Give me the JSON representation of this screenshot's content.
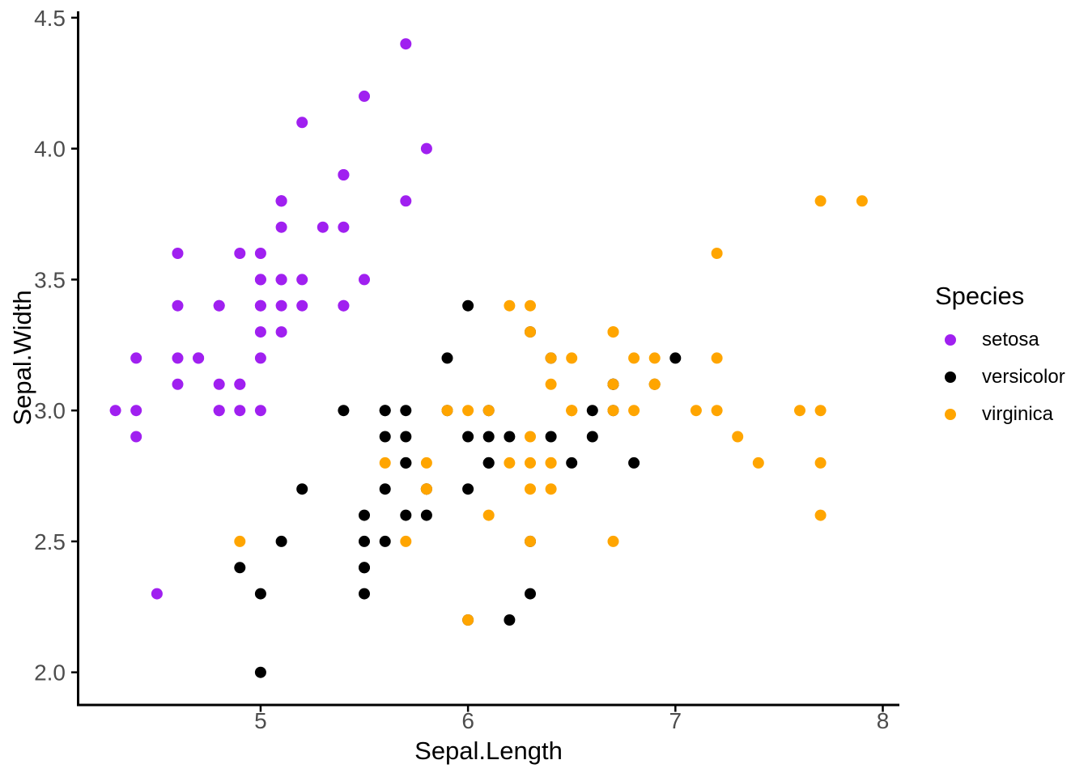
{
  "chart_data": {
    "type": "scatter",
    "title": "",
    "xlabel": "Sepal.Length",
    "ylabel": "Sepal.Width",
    "xlim": [
      4.12,
      8.08
    ],
    "ylim": [
      1.88,
      4.52
    ],
    "grid": "off",
    "background_color": "#FFFFFF",
    "axis_color": "#000000",
    "tick_label_color": "#4D4D4D",
    "x_ticks": [
      {
        "value": 5,
        "label": "5"
      },
      {
        "value": 6,
        "label": "6"
      },
      {
        "value": 7,
        "label": "7"
      },
      {
        "value": 8,
        "label": "8"
      }
    ],
    "y_ticks": [
      {
        "value": 2.0,
        "label": "2.0"
      },
      {
        "value": 2.5,
        "label": "2.5"
      },
      {
        "value": 3.0,
        "label": "3.0"
      },
      {
        "value": 3.5,
        "label": "3.5"
      },
      {
        "value": 4.0,
        "label": "4.0"
      },
      {
        "value": 4.5,
        "label": "4.5"
      }
    ],
    "legend": {
      "title": "Species",
      "position": "right"
    },
    "point_radius_px": 7,
    "series": [
      {
        "name": "setosa",
        "color": "#A020F0",
        "points": [
          [
            5.1,
            3.5
          ],
          [
            4.9,
            3.0
          ],
          [
            4.7,
            3.2
          ],
          [
            4.6,
            3.1
          ],
          [
            5.0,
            3.6
          ],
          [
            5.4,
            3.9
          ],
          [
            4.6,
            3.4
          ],
          [
            5.0,
            3.4
          ],
          [
            4.4,
            2.9
          ],
          [
            4.9,
            3.1
          ],
          [
            5.4,
            3.7
          ],
          [
            4.8,
            3.4
          ],
          [
            4.8,
            3.0
          ],
          [
            4.3,
            3.0
          ],
          [
            5.8,
            4.0
          ],
          [
            5.7,
            4.4
          ],
          [
            5.4,
            3.9
          ],
          [
            5.1,
            3.5
          ],
          [
            5.7,
            3.8
          ],
          [
            5.1,
            3.8
          ],
          [
            5.4,
            3.4
          ],
          [
            5.1,
            3.7
          ],
          [
            4.6,
            3.6
          ],
          [
            5.1,
            3.3
          ],
          [
            4.8,
            3.4
          ],
          [
            5.0,
            3.0
          ],
          [
            5.0,
            3.4
          ],
          [
            5.2,
            3.5
          ],
          [
            5.2,
            3.4
          ],
          [
            4.7,
            3.2
          ],
          [
            4.8,
            3.1
          ],
          [
            5.4,
            3.4
          ],
          [
            5.2,
            4.1
          ],
          [
            5.5,
            4.2
          ],
          [
            4.9,
            3.1
          ],
          [
            5.0,
            3.2
          ],
          [
            5.5,
            3.5
          ],
          [
            4.9,
            3.6
          ],
          [
            4.4,
            3.0
          ],
          [
            5.1,
            3.4
          ],
          [
            5.0,
            3.5
          ],
          [
            4.5,
            2.3
          ],
          [
            4.4,
            3.2
          ],
          [
            5.0,
            3.5
          ],
          [
            5.1,
            3.8
          ],
          [
            4.8,
            3.0
          ],
          [
            5.1,
            3.8
          ],
          [
            4.6,
            3.2
          ],
          [
            5.3,
            3.7
          ],
          [
            5.0,
            3.3
          ]
        ]
      },
      {
        "name": "versicolor",
        "color": "#000000",
        "points": [
          [
            7.0,
            3.2
          ],
          [
            6.4,
            3.2
          ],
          [
            6.9,
            3.1
          ],
          [
            5.5,
            2.3
          ],
          [
            6.5,
            2.8
          ],
          [
            5.7,
            2.8
          ],
          [
            6.3,
            3.3
          ],
          [
            4.9,
            2.4
          ],
          [
            6.6,
            2.9
          ],
          [
            5.2,
            2.7
          ],
          [
            5.0,
            2.0
          ],
          [
            5.9,
            3.0
          ],
          [
            6.0,
            2.2
          ],
          [
            6.1,
            2.9
          ],
          [
            5.6,
            2.9
          ],
          [
            6.7,
            3.1
          ],
          [
            5.6,
            3.0
          ],
          [
            5.8,
            2.7
          ],
          [
            6.2,
            2.2
          ],
          [
            5.6,
            2.5
          ],
          [
            5.9,
            3.2
          ],
          [
            6.1,
            2.8
          ],
          [
            6.3,
            2.5
          ],
          [
            6.1,
            2.8
          ],
          [
            6.4,
            2.9
          ],
          [
            6.6,
            3.0
          ],
          [
            6.8,
            2.8
          ],
          [
            6.7,
            3.0
          ],
          [
            6.0,
            2.9
          ],
          [
            5.7,
            2.6
          ],
          [
            5.5,
            2.4
          ],
          [
            5.5,
            2.4
          ],
          [
            5.8,
            2.7
          ],
          [
            6.0,
            2.7
          ],
          [
            5.4,
            3.0
          ],
          [
            6.0,
            3.4
          ],
          [
            6.7,
            3.1
          ],
          [
            6.3,
            2.3
          ],
          [
            5.6,
            3.0
          ],
          [
            5.5,
            2.5
          ],
          [
            5.5,
            2.6
          ],
          [
            6.1,
            3.0
          ],
          [
            5.8,
            2.6
          ],
          [
            5.0,
            2.3
          ],
          [
            5.6,
            2.7
          ],
          [
            5.7,
            3.0
          ],
          [
            5.7,
            2.9
          ],
          [
            6.2,
            2.9
          ],
          [
            5.1,
            2.5
          ],
          [
            5.7,
            2.8
          ]
        ]
      },
      {
        "name": "virginica",
        "color": "#FFA500",
        "points": [
          [
            6.3,
            3.3
          ],
          [
            5.8,
            2.7
          ],
          [
            7.1,
            3.0
          ],
          [
            6.3,
            2.9
          ],
          [
            6.5,
            3.0
          ],
          [
            7.6,
            3.0
          ],
          [
            4.9,
            2.5
          ],
          [
            7.3,
            2.9
          ],
          [
            6.7,
            2.5
          ],
          [
            7.2,
            3.6
          ],
          [
            6.5,
            3.2
          ],
          [
            6.4,
            2.7
          ],
          [
            6.8,
            3.0
          ],
          [
            5.7,
            2.5
          ],
          [
            5.8,
            2.8
          ],
          [
            6.4,
            3.2
          ],
          [
            6.5,
            3.0
          ],
          [
            7.7,
            3.8
          ],
          [
            7.7,
            2.6
          ],
          [
            6.0,
            2.2
          ],
          [
            6.9,
            3.2
          ],
          [
            5.6,
            2.8
          ],
          [
            7.7,
            2.8
          ],
          [
            6.3,
            2.7
          ],
          [
            6.7,
            3.3
          ],
          [
            7.2,
            3.2
          ],
          [
            6.2,
            2.8
          ],
          [
            6.1,
            3.0
          ],
          [
            6.4,
            2.8
          ],
          [
            7.2,
            3.0
          ],
          [
            7.4,
            2.8
          ],
          [
            7.9,
            3.8
          ],
          [
            6.4,
            2.8
          ],
          [
            6.3,
            2.8
          ],
          [
            6.1,
            2.6
          ],
          [
            7.7,
            3.0
          ],
          [
            6.3,
            3.4
          ],
          [
            6.4,
            3.1
          ],
          [
            6.0,
            3.0
          ],
          [
            6.9,
            3.1
          ],
          [
            6.7,
            3.1
          ],
          [
            6.9,
            3.1
          ],
          [
            5.8,
            2.7
          ],
          [
            6.8,
            3.2
          ],
          [
            6.7,
            3.3
          ],
          [
            6.7,
            3.0
          ],
          [
            6.3,
            2.5
          ],
          [
            6.5,
            3.0
          ],
          [
            6.2,
            3.4
          ],
          [
            5.9,
            3.0
          ]
        ]
      }
    ]
  }
}
